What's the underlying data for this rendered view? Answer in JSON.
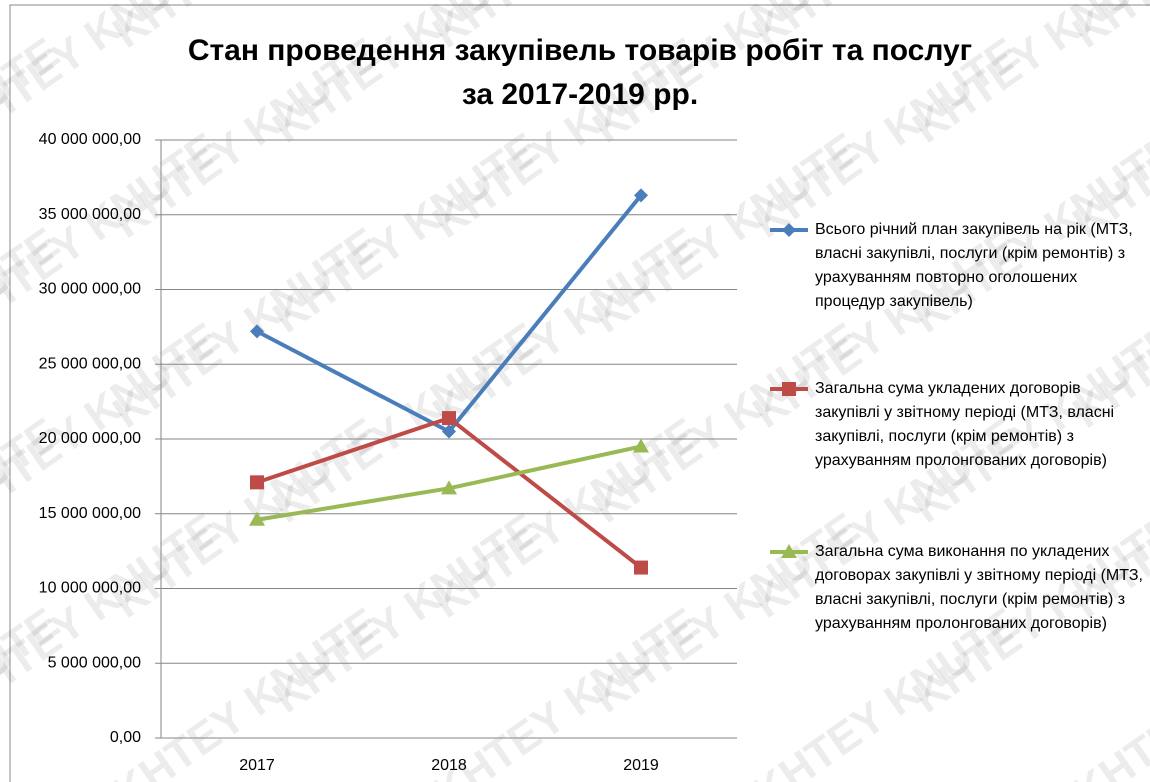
{
  "chart_data": {
    "type": "line",
    "title": "Стан проведення закупівель товарів робіт та послуг",
    "subtitle": "за 2017-2019 рр.",
    "watermark": "KHTEY KNUTE",
    "categories": [
      "2017",
      "2018",
      "2019"
    ],
    "series": [
      {
        "name": "Всього річний план закупівель на рік (МТЗ, власні закупівлі, послуги (крім ремонтів) з урахуванням повторно оголошених процедур закупівель)",
        "color": "#4a7ebb",
        "marker": "diamond",
        "values": [
          27200000,
          20500000,
          36300000
        ]
      },
      {
        "name": "Загальна сума укладених договорів закупівлі у звітному періоді (МТЗ, власні закупівлі, послуги (крім ремонтів) з урахуванням пролонгованих договорів)",
        "color": "#be4b48",
        "marker": "square",
        "values": [
          17100000,
          21400000,
          11400000
        ]
      },
      {
        "name": "Загальна сума виконання по укладених договорах закупівлі у звітному періоді (МТЗ, власні закупівлі, послуги (крім ремонтів) з урахуванням пролонгованих договорів)",
        "color": "#98b954",
        "marker": "triangle",
        "values": [
          14600000,
          16700000,
          19500000
        ]
      }
    ],
    "ylim": [
      0,
      40000000
    ],
    "yticks": [
      {
        "value": 0,
        "label": "0,00"
      },
      {
        "value": 5000000,
        "label": "5 000 000,00"
      },
      {
        "value": 10000000,
        "label": "10 000 000,00"
      },
      {
        "value": 15000000,
        "label": "15 000 000,00"
      },
      {
        "value": 20000000,
        "label": "20 000 000,00"
      },
      {
        "value": 25000000,
        "label": "25 000 000,00"
      },
      {
        "value": 30000000,
        "label": "30 000 000,00"
      },
      {
        "value": 35000000,
        "label": "35 000 000,00"
      },
      {
        "value": 40000000,
        "label": "40 000 000,00"
      }
    ],
    "grid": true,
    "legend": "right"
  }
}
